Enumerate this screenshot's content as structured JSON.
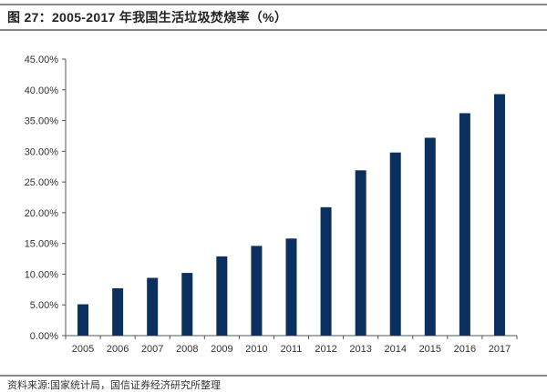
{
  "title": "图 27：2005-2017 年我国生活垃圾焚烧率（%）",
  "source": "资料来源:国家统计局，国信证券经济研究所整理",
  "chart_data": {
    "type": "bar",
    "title": "图 27：2005-2017 年我国生活垃圾焚烧率（%）",
    "xlabel": "",
    "ylabel": "",
    "categories": [
      "2005",
      "2006",
      "2007",
      "2008",
      "2009",
      "2010",
      "2011",
      "2012",
      "2013",
      "2014",
      "2015",
      "2016",
      "2017"
    ],
    "values": [
      5.1,
      7.7,
      9.4,
      10.2,
      12.9,
      14.6,
      15.8,
      20.9,
      26.9,
      29.8,
      32.2,
      36.2,
      39.3
    ],
    "ylim": [
      0,
      45
    ],
    "yticks": [
      "0.00%",
      "5.00%",
      "10.00%",
      "15.00%",
      "20.00%",
      "25.00%",
      "30.00%",
      "35.00%",
      "40.00%",
      "45.00%"
    ],
    "grid": false,
    "legend": "none",
    "bar_color": "#0b3060"
  }
}
